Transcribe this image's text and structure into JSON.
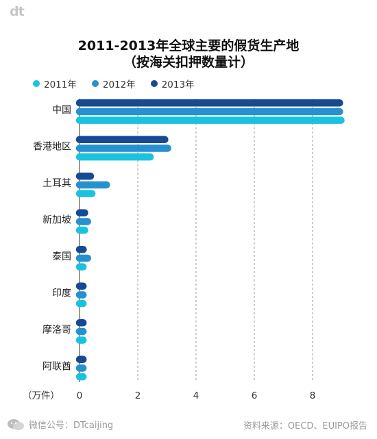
{
  "logo": "dt",
  "title_line1": "2011-2013年全球主要的假货生产地",
  "title_line2": "（按海关扣押数量计）",
  "footer": {
    "left": "微信公号：DTcaijing",
    "right": "资料来源：OECD、EUIPO报告"
  },
  "colors": {
    "2011": "#19c3e0",
    "2012": "#2791d0",
    "2013": "#174a93"
  },
  "chart_data": {
    "type": "bar",
    "orientation": "horizontal",
    "title": "2011-2013年全球主要的假货生产地（按海关扣押数量计）",
    "categories": [
      "中国",
      "香港地区",
      "土耳其",
      "新加坡",
      "泰国",
      "印度",
      "摩洛哥",
      "阿联酋"
    ],
    "series": [
      {
        "name": "2011年",
        "values": [
          9.1,
          2.55,
          0.55,
          0.3,
          0.2,
          0.15,
          0.1,
          0.1
        ]
      },
      {
        "name": "2012年",
        "values": [
          9.05,
          3.15,
          1.05,
          0.4,
          0.4,
          0.15,
          0.15,
          0.15
        ]
      },
      {
        "name": "2013年",
        "values": [
          9.05,
          3.05,
          0.5,
          0.3,
          0.25,
          0.15,
          0.1,
          0.1
        ]
      }
    ],
    "xlabel": "（万件）",
    "xticks": [
      "0",
      "2",
      "4",
      "6",
      "8"
    ],
    "xlim": [
      0,
      9.2
    ],
    "grid": true,
    "legend": "top-left"
  }
}
